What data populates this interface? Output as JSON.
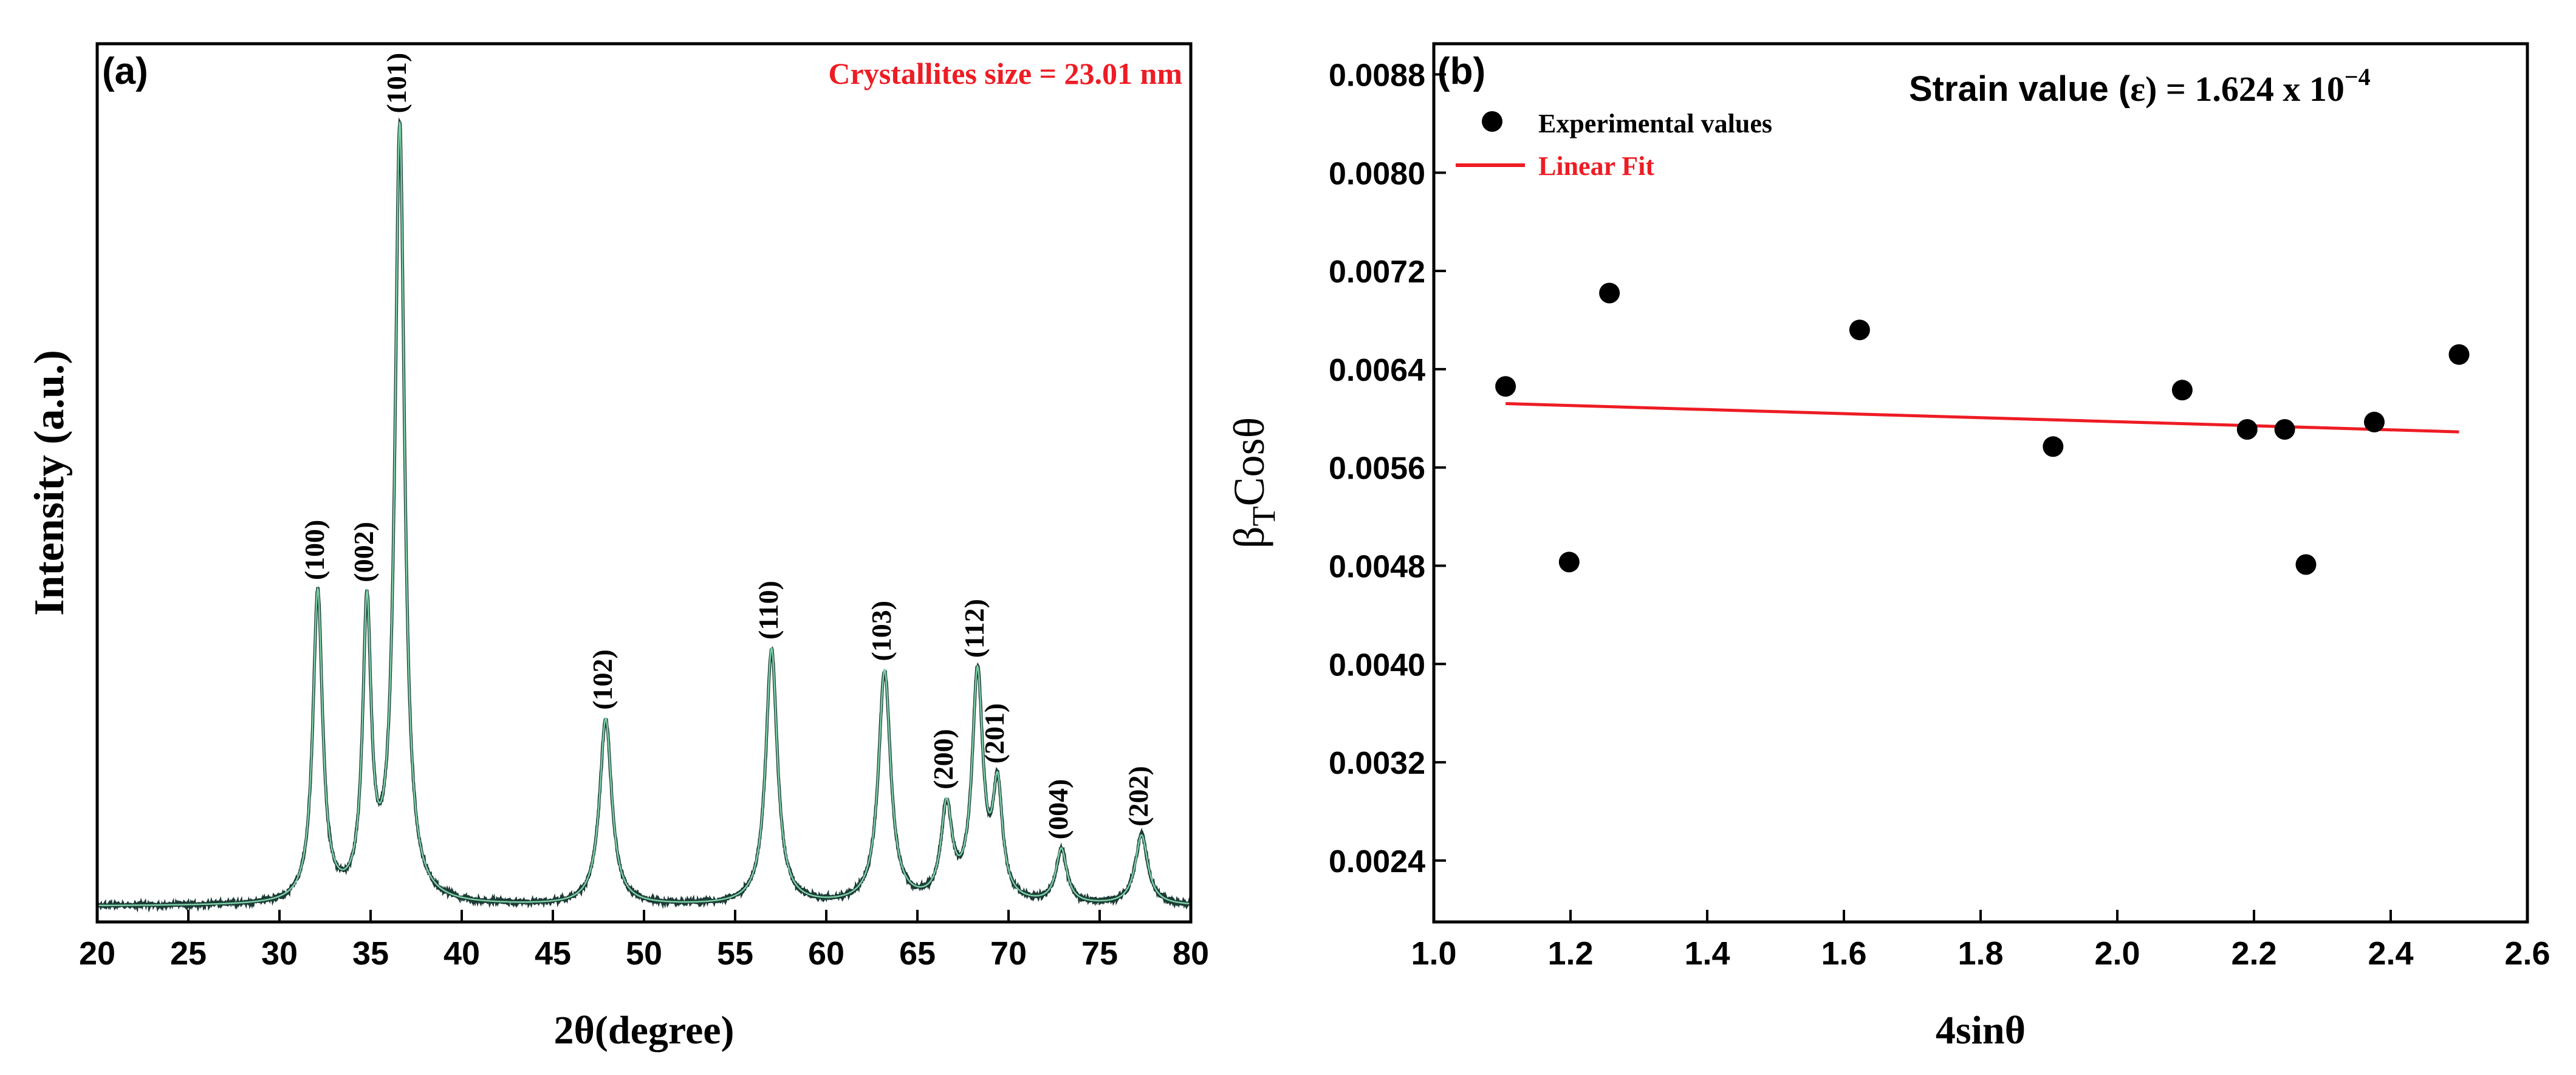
{
  "figure": {
    "background": "#ffffff"
  },
  "chart_data": [
    {
      "type": "line",
      "panel_label": "(a)",
      "annotation": "Crystallites size = 23.01 nm",
      "xlabel": "2θ(degree)",
      "ylabel": "Intensity (a.u.)",
      "xlim": [
        20,
        80
      ],
      "ylim": [
        0,
        1.0
      ],
      "x_ticks": [
        20,
        25,
        30,
        35,
        40,
        45,
        50,
        55,
        60,
        65,
        70,
        75,
        80
      ],
      "peaks": [
        {
          "label": "(100)",
          "x": 32.1,
          "intensity": 0.4,
          "width": 0.32
        },
        {
          "label": "(002)",
          "x": 34.8,
          "intensity": 0.37,
          "width": 0.28
        },
        {
          "label": "(101)",
          "x": 36.6,
          "intensity": 1.0,
          "width": 0.32
        },
        {
          "label": "(102)",
          "x": 47.9,
          "intensity": 0.24,
          "width": 0.4
        },
        {
          "label": "(110)",
          "x": 57.0,
          "intensity": 0.33,
          "width": 0.38
        },
        {
          "label": "(103)",
          "x": 63.2,
          "intensity": 0.3,
          "width": 0.4
        },
        {
          "label": "(200)",
          "x": 66.6,
          "intensity": 0.12,
          "width": 0.36
        },
        {
          "label": "(112)",
          "x": 68.3,
          "intensity": 0.29,
          "width": 0.36
        },
        {
          "label": "(201)",
          "x": 69.4,
          "intensity": 0.14,
          "width": 0.32
        },
        {
          "label": "(004)",
          "x": 72.9,
          "intensity": 0.07,
          "width": 0.36
        },
        {
          "label": "(202)",
          "x": 77.3,
          "intensity": 0.09,
          "width": 0.42
        }
      ],
      "baseline": 0.0,
      "colors": {
        "pattern": "#1c3b36",
        "fit": "#7cd0a6",
        "annotation": "#ee1c24"
      }
    },
    {
      "type": "scatter",
      "panel_label": "(b)",
      "annotation_prefix": "Strain value (",
      "annotation_symbol": "ε",
      "annotation_mid": ") = 1.624 x 10",
      "annotation_exp": "−4",
      "xlabel": "4sinθ",
      "ylabel_main": "β",
      "ylabel_sub": "T",
      "ylabel_rest": "Cosθ",
      "xlim": [
        1.0,
        2.6
      ],
      "ylim": [
        0.0019,
        0.00905
      ],
      "x_ticks": [
        "1.0",
        "1.2",
        "1.4",
        "1.6",
        "1.8",
        "2.0",
        "2.2",
        "2.4",
        "2.6"
      ],
      "y_ticks": [
        "0.0024",
        "0.0032",
        "0.0040",
        "0.0048",
        "0.0056",
        "0.0064",
        "0.0072",
        "0.0080",
        "0.0088"
      ],
      "legend": {
        "points_label": "Experimental values",
        "fit_label": "Linear Fit",
        "placement": "top-left"
      },
      "points": [
        {
          "x": 1.105,
          "y": 0.00626
        },
        {
          "x": 1.198,
          "y": 0.00483
        },
        {
          "x": 1.257,
          "y": 0.00702
        },
        {
          "x": 1.623,
          "y": 0.00672
        },
        {
          "x": 1.906,
          "y": 0.00577
        },
        {
          "x": 2.095,
          "y": 0.00623
        },
        {
          "x": 2.19,
          "y": 0.00591
        },
        {
          "x": 2.245,
          "y": 0.00591
        },
        {
          "x": 2.276,
          "y": 0.00481
        },
        {
          "x": 2.376,
          "y": 0.00597
        },
        {
          "x": 2.5,
          "y": 0.00652
        }
      ],
      "fit": {
        "x": [
          1.105,
          2.5
        ],
        "y": [
          0.00612,
          0.00589
        ]
      },
      "colors": {
        "points": "#000000",
        "fit": "#ee1c24",
        "legend_text_fit": "#ee1c24"
      }
    }
  ]
}
